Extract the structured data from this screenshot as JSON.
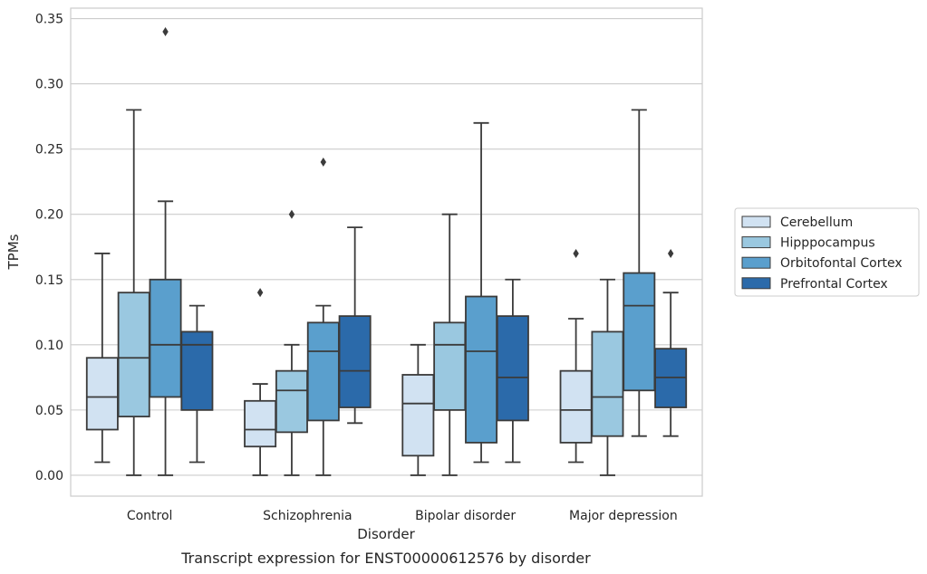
{
  "chart_data": {
    "type": "boxplot",
    "xlabel": "Disorder",
    "ylabel": "TPMs",
    "caption": "Transcript expression for ENST00000612576 by disorder",
    "ylim": [
      -0.016,
      0.358
    ],
    "yticks": [
      "0.00",
      "0.05",
      "0.10",
      "0.15",
      "0.20",
      "0.25",
      "0.30",
      "0.35"
    ],
    "ytick_values": [
      0,
      0.05,
      0.1,
      0.15,
      0.2,
      0.25,
      0.3,
      0.35
    ],
    "grid": "horizontal",
    "legend_placement": "right",
    "categories": [
      "Control",
      "Schizophrenia",
      "Bipolar disorder",
      "Major depression"
    ],
    "series": [
      {
        "name": "Cerebellum",
        "color": "#d1e2f2",
        "boxes": [
          {
            "whislo": 0.01,
            "q1": 0.035,
            "med": 0.06,
            "q3": 0.09,
            "whishi": 0.17,
            "fliers": []
          },
          {
            "whislo": 0.0,
            "q1": 0.022,
            "med": 0.035,
            "q3": 0.057,
            "whishi": 0.07,
            "fliers": [
              0.14
            ]
          },
          {
            "whislo": 0.0,
            "q1": 0.015,
            "med": 0.055,
            "q3": 0.077,
            "whishi": 0.1,
            "fliers": []
          },
          {
            "whislo": 0.01,
            "q1": 0.025,
            "med": 0.05,
            "q3": 0.08,
            "whishi": 0.12,
            "fliers": [
              0.17
            ]
          }
        ]
      },
      {
        "name": "Hipppocampus",
        "color": "#9ac8e0",
        "boxes": [
          {
            "whislo": 0.0,
            "q1": 0.045,
            "med": 0.09,
            "q3": 0.14,
            "whishi": 0.28,
            "fliers": []
          },
          {
            "whislo": 0.0,
            "q1": 0.033,
            "med": 0.065,
            "q3": 0.08,
            "whishi": 0.1,
            "fliers": [
              0.2
            ]
          },
          {
            "whislo": 0.0,
            "q1": 0.05,
            "med": 0.1,
            "q3": 0.117,
            "whishi": 0.2,
            "fliers": []
          },
          {
            "whislo": 0.0,
            "q1": 0.03,
            "med": 0.06,
            "q3": 0.11,
            "whishi": 0.15,
            "fliers": []
          }
        ]
      },
      {
        "name": "Orbitofontal Cortex",
        "color": "#5a9fcd",
        "boxes": [
          {
            "whislo": 0.0,
            "q1": 0.06,
            "med": 0.1,
            "q3": 0.15,
            "whishi": 0.21,
            "fliers": [
              0.34
            ]
          },
          {
            "whislo": 0.0,
            "q1": 0.042,
            "med": 0.095,
            "q3": 0.117,
            "whishi": 0.13,
            "fliers": [
              0.24
            ]
          },
          {
            "whislo": 0.01,
            "q1": 0.025,
            "med": 0.095,
            "q3": 0.137,
            "whishi": 0.27,
            "fliers": []
          },
          {
            "whislo": 0.03,
            "q1": 0.065,
            "med": 0.13,
            "q3": 0.155,
            "whishi": 0.28,
            "fliers": []
          }
        ]
      },
      {
        "name": "Prefrontal Cortex",
        "color": "#2b6aaa",
        "boxes": [
          {
            "whislo": 0.01,
            "q1": 0.05,
            "med": 0.1,
            "q3": 0.11,
            "whishi": 0.13,
            "fliers": []
          },
          {
            "whislo": 0.04,
            "q1": 0.052,
            "med": 0.08,
            "q3": 0.122,
            "whishi": 0.19,
            "fliers": []
          },
          {
            "whislo": 0.01,
            "q1": 0.042,
            "med": 0.075,
            "q3": 0.122,
            "whishi": 0.15,
            "fliers": []
          },
          {
            "whislo": 0.03,
            "q1": 0.052,
            "med": 0.075,
            "q3": 0.097,
            "whishi": 0.14,
            "fliers": [
              0.17
            ]
          }
        ]
      }
    ]
  }
}
